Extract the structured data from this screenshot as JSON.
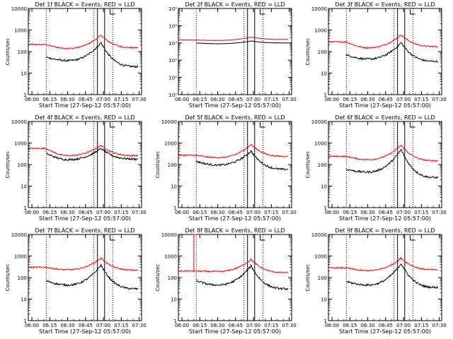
{
  "colors": {
    "events": "#000000",
    "lld": "#ff0000",
    "background": "#ffffff"
  },
  "chart_data": [
    {
      "type": "line",
      "title": "Det 1f BLACK = Events, RED = LLD",
      "xlabel": "Start Time (27-Sep-12 05:57:00)",
      "ylabel": "Counts/sec",
      "x_ticks": [
        "06:00",
        "06:15",
        "06:30",
        "06:45",
        "07:00",
        "07:15",
        "07:30"
      ],
      "y_ticks": [
        "1",
        "10",
        "100",
        "1000",
        "10000"
      ],
      "ylim": [
        1,
        10000
      ],
      "yscale": "log",
      "xlim_minutes": [
        0,
        95
      ],
      "dotted_lines": [
        "06:12",
        "06:52",
        "07:08"
      ],
      "solid_lines": [
        "06:55",
        "07:01"
      ],
      "lld": {
        "start": 210,
        "left_min": 140,
        "peak": 580,
        "end": 150
      },
      "events": {
        "start": 55,
        "left_min": 38,
        "peak": 260,
        "end": 20
      }
    },
    {
      "type": "line",
      "title": "Det 2f BLACK = Events, RED = LLD",
      "xlabel": "Start Time (27-Sep-12 05:57:00)",
      "ylabel": "",
      "x_ticks": [
        "06:00",
        "06:15",
        "06:30",
        "06:45",
        "07:00",
        "07:15",
        "07:30"
      ],
      "y_ticks": [
        "10⁰",
        "10¹",
        "10²",
        "10³",
        "10⁴",
        "10⁵"
      ],
      "ylim": [
        1,
        100000
      ],
      "yscale": "log",
      "xlim_minutes": [
        0,
        95
      ],
      "dotted_lines": [
        "06:12",
        "06:52",
        "07:08"
      ],
      "solid_lines": [
        "06:55",
        "07:01"
      ],
      "lld": {
        "start": 1500,
        "left_min": 1400,
        "peak": 2200,
        "end": 1600
      },
      "events": {
        "start": 1000,
        "left_min": 900,
        "peak": 1300,
        "end": 1000
      }
    },
    {
      "type": "line",
      "title": "Det 3f BLACK = Events, RED = LLD",
      "xlabel": "Start Time (27-Sep-12 05:57:00)",
      "ylabel": "Counts/sec",
      "x_ticks": [
        "06:00",
        "06:15",
        "06:30",
        "06:45",
        "07:00",
        "07:15",
        "07:30"
      ],
      "y_ticks": [
        "1",
        "10",
        "100",
        "1000",
        "10000"
      ],
      "ylim": [
        1,
        10000
      ],
      "yscale": "log",
      "xlim_minutes": [
        0,
        95
      ],
      "dotted_lines": [
        "06:12",
        "06:52",
        "07:08"
      ],
      "solid_lines": [
        "06:55",
        "07:01"
      ],
      "lld": {
        "start": 280,
        "left_min": 150,
        "peak": 600,
        "end": 170
      },
      "events": {
        "start": 70,
        "left_min": 45,
        "peak": 260,
        "end": 35
      }
    },
    {
      "type": "line",
      "title": "Det 4f BLACK = Events, RED = LLD",
      "xlabel": "Start Time (27-Sep-12 05:57:00)",
      "ylabel": "Counts/sec",
      "x_ticks": [
        "06:00",
        "06:15",
        "06:30",
        "06:45",
        "07:00",
        "07:15",
        "07:30"
      ],
      "y_ticks": [
        "1",
        "10",
        "100",
        "1000",
        "10000"
      ],
      "ylim": [
        1,
        10000
      ],
      "yscale": "log",
      "xlim_minutes": [
        0,
        95
      ],
      "dotted_lines": [
        "06:12",
        "06:52",
        "07:08"
      ],
      "solid_lines": [
        "06:55",
        "07:01"
      ],
      "lld": {
        "start": 560,
        "left_min": 260,
        "peak": 780,
        "end": 260
      },
      "events": {
        "start": 330,
        "left_min": 170,
        "peak": 560,
        "end": 180
      }
    },
    {
      "type": "line",
      "title": "Det 5f BLACK = Events, RED = LLD",
      "xlabel": "Start Time (27-Sep-12 05:57:00)",
      "ylabel": "Counts/sec",
      "x_ticks": [
        "06:00",
        "06:15",
        "06:30",
        "06:45",
        "07:00",
        "07:15",
        "07:30"
      ],
      "y_ticks": [
        "1",
        "10",
        "100",
        "1000",
        "10000"
      ],
      "ylim": [
        1,
        10000
      ],
      "yscale": "log",
      "xlim_minutes": [
        0,
        95
      ],
      "dotted_lines": [
        "06:12",
        "06:52",
        "07:08"
      ],
      "solid_lines": [
        "06:55",
        "07:01"
      ],
      "lld": {
        "start": 270,
        "left_min": 210,
        "peak": 850,
        "end": 240
      },
      "events": {
        "start": 140,
        "left_min": 95,
        "peak": 420,
        "end": 60
      }
    },
    {
      "type": "line",
      "title": "Det 6f BLACK = Events, RED = LLD",
      "xlabel": "Start Time (27-Sep-12 05:57:00)",
      "ylabel": "Counts/sec",
      "x_ticks": [
        "06:00",
        "06:15",
        "06:30",
        "06:45",
        "07:00",
        "07:15",
        "07:30"
      ],
      "y_ticks": [
        "1",
        "10",
        "100",
        "1000",
        "10000"
      ],
      "ylim": [
        1,
        10000
      ],
      "yscale": "log",
      "xlim_minutes": [
        0,
        95
      ],
      "dotted_lines": [
        "06:12",
        "06:52",
        "07:08"
      ],
      "solid_lines": [
        "06:55",
        "07:01"
      ],
      "lld": {
        "start": 240,
        "left_min": 170,
        "peak": 780,
        "end": 150
      },
      "events": {
        "start": 60,
        "left_min": 45,
        "peak": 500,
        "end": 25
      }
    },
    {
      "type": "line",
      "title": "Det 7f BLACK = Events, RED = LLD",
      "xlabel": "Start Time (27-Sep-12 05:57:00)",
      "ylabel": "Counts/sec",
      "x_ticks": [
        "06:00",
        "06:15",
        "06:30",
        "06:45",
        "07:00",
        "07:15",
        "07:30"
      ],
      "y_ticks": [
        "1",
        "10",
        "100",
        "1000",
        "10000"
      ],
      "ylim": [
        1,
        10000
      ],
      "yscale": "log",
      "xlim_minutes": [
        0,
        95
      ],
      "dotted_lines": [
        "06:12",
        "06:52",
        "07:08"
      ],
      "solid_lines": [
        "06:55",
        "07:01"
      ],
      "lld": {
        "start": 300,
        "left_min": 230,
        "peak": 800,
        "end": 220
      },
      "events": {
        "start": 70,
        "left_min": 45,
        "peak": 380,
        "end": 30
      }
    },
    {
      "type": "line",
      "title": "Det 8f BLACK = Events, RED = LLD",
      "xlabel": "Start Time (27-Sep-12 05:57:00)",
      "ylabel": "Counts/sec",
      "x_ticks": [
        "06:00",
        "06:15",
        "06:30",
        "06:45",
        "07:00",
        "07:15",
        "07:30"
      ],
      "y_ticks": [
        "1",
        "10",
        "100",
        "1000",
        "10000"
      ],
      "ylim": [
        1,
        10000
      ],
      "yscale": "log",
      "xlim_minutes": [
        0,
        95
      ],
      "dotted_lines": [
        "06:12",
        "06:52",
        "07:08"
      ],
      "solid_lines": [
        "06:55",
        "07:01"
      ],
      "lld_saturated_until": "06:10",
      "lld": {
        "start": 200,
        "left_min": 190,
        "peak": 700,
        "end": 170
      },
      "events": {
        "start": 70,
        "left_min": 45,
        "peak": 350,
        "end": 30
      }
    },
    {
      "type": "line",
      "title": "Det 9f BLACK = Events, RED = LLD",
      "xlabel": "Start Time (27-Sep-12 05:57:00)",
      "ylabel": "Counts/sec",
      "x_ticks": [
        "06:00",
        "06:15",
        "06:30",
        "06:45",
        "07:00",
        "07:15",
        "07:30"
      ],
      "y_ticks": [
        "1",
        "10",
        "100",
        "1000",
        "10000"
      ],
      "ylim": [
        1,
        10000
      ],
      "yscale": "log",
      "xlim_minutes": [
        0,
        95
      ],
      "dotted_lines": [
        "06:12",
        "06:52",
        "07:08"
      ],
      "solid_lines": [
        "06:55",
        "07:01"
      ],
      "lld": {
        "start": 280,
        "left_min": 210,
        "peak": 800,
        "end": 230
      },
      "events": {
        "start": 65,
        "left_min": 45,
        "peak": 450,
        "end": 35
      }
    }
  ]
}
